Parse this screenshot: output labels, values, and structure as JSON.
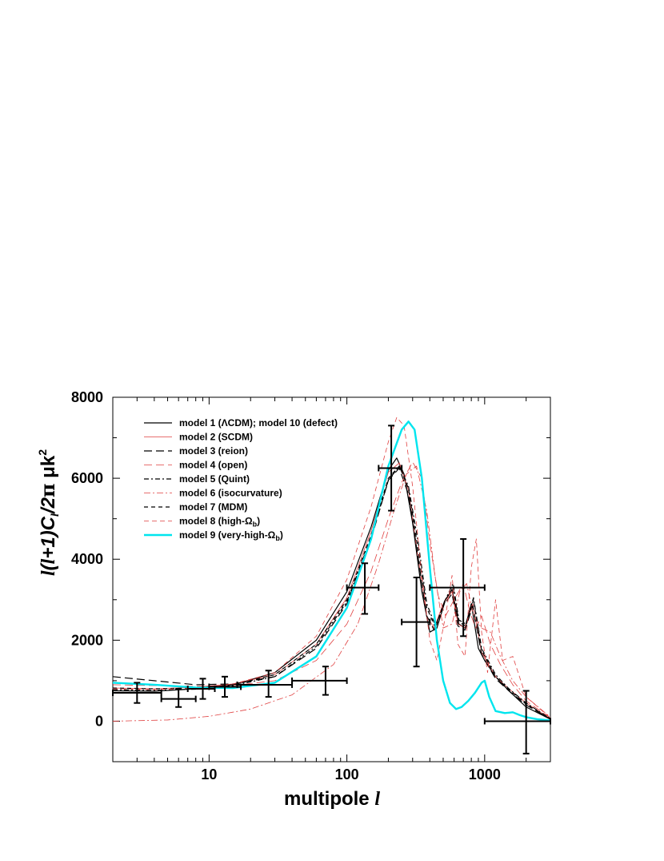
{
  "chart_data": {
    "type": "line",
    "xscale": "log",
    "xlim": [
      2,
      3000
    ],
    "ylim": [
      -1000,
      8000
    ],
    "xlabel": "multipole ",
    "xlabel_var": "l",
    "ylabel": {
      "l1": "l",
      "p1": "(",
      "l2": "l",
      "p2": "+1)",
      "C": "C",
      "sub": "l",
      "p3": "/2",
      "pi": "π",
      "units": " μk",
      "sup": "2"
    },
    "x_ticks": [
      {
        "value": 10,
        "label": "10"
      },
      {
        "value": 100,
        "label": "100"
      },
      {
        "value": 1000,
        "label": "1000"
      }
    ],
    "y_ticks": [
      {
        "value": 0,
        "label": "0"
      },
      {
        "value": 2000,
        "label": "2000"
      },
      {
        "value": 4000,
        "label": "4000"
      },
      {
        "value": 6000,
        "label": "6000"
      },
      {
        "value": 8000,
        "label": "8000"
      }
    ],
    "grid": false,
    "legend_placement": "top-left",
    "series": [
      {
        "name": "model 1 (ΛCDM); model 10 (defect)",
        "color": "#000000",
        "dash": "",
        "width": 1.2,
        "x": [
          2,
          4,
          8,
          15,
          30,
          60,
          100,
          150,
          200,
          230,
          260,
          300,
          350,
          400,
          450,
          520,
          580,
          650,
          720,
          800,
          900,
          1000,
          1200,
          1500,
          2000,
          3000
        ],
        "y": [
          750,
          740,
          800,
          900,
          1200,
          2000,
          3200,
          4800,
          6200,
          6500,
          6100,
          4900,
          3200,
          2200,
          2300,
          3000,
          3250,
          2400,
          2300,
          2900,
          1800,
          1500,
          1100,
          750,
          350,
          50
        ]
      },
      {
        "name": "model 2 (SCDM)",
        "color": "#e04040",
        "dash": "",
        "width": 0.8,
        "x": [
          2,
          4,
          8,
          15,
          30,
          60,
          100,
          150,
          200,
          240,
          280,
          330,
          380,
          430,
          500,
          580,
          640,
          720,
          820,
          950,
          1200,
          1500,
          2000,
          3000
        ],
        "y": [
          820,
          800,
          840,
          920,
          1150,
          1900,
          3050,
          4700,
          6150,
          6380,
          5700,
          4000,
          2600,
          2300,
          2900,
          3200,
          2400,
          2300,
          2900,
          1700,
          1100,
          800,
          450,
          60
        ]
      },
      {
        "name": "model 3 (reion)",
        "color": "#000000",
        "dash": "10,5",
        "width": 1.2,
        "x": [
          2,
          4,
          8,
          15,
          30,
          60,
          100,
          150,
          200,
          240,
          280,
          330,
          380,
          430,
          500,
          580,
          640,
          720,
          820,
          950,
          1200,
          1500,
          2000,
          3000
        ],
        "y": [
          1100,
          1000,
          900,
          920,
          1100,
          1800,
          2900,
          4500,
          5950,
          6250,
          5600,
          4000,
          2600,
          2250,
          2850,
          3150,
          2350,
          2250,
          2850,
          1650,
          1050,
          750,
          400,
          50
        ]
      },
      {
        "name": "model 4 (open)",
        "color": "#e04040",
        "dash": "10,5",
        "width": 0.8,
        "x": [
          2,
          4,
          8,
          15,
          30,
          60,
          100,
          150,
          200,
          250,
          300,
          350,
          400,
          460,
          520,
          600,
          700,
          780,
          860,
          950,
          1100,
          1300,
          1600,
          2000,
          3000
        ],
        "y": [
          900,
          880,
          860,
          880,
          1000,
          1500,
          2400,
          3700,
          5000,
          5900,
          6400,
          6000,
          4400,
          3100,
          2600,
          3000,
          3400,
          2700,
          2300,
          2600,
          1900,
          1400,
          900,
          500,
          80
        ]
      },
      {
        "name": "model 5 (Quint)",
        "color": "#000000",
        "dash": "6,3,2,3",
        "width": 1.2,
        "x": [
          2,
          4,
          8,
          15,
          30,
          60,
          100,
          150,
          200,
          240,
          280,
          330,
          380,
          440,
          510,
          590,
          650,
          730,
          830,
          950,
          1200,
          1500,
          2000,
          3000
        ],
        "y": [
          780,
          760,
          790,
          880,
          1100,
          1850,
          2950,
          4550,
          5950,
          6300,
          5800,
          4400,
          2900,
          2350,
          2950,
          3400,
          2500,
          2400,
          3050,
          1800,
          1150,
          800,
          450,
          60
        ]
      },
      {
        "name": "model 6 (isocurvature)",
        "color": "#e04040",
        "dash": "8,3,2,3",
        "width": 0.8,
        "x": [
          2,
          5,
          10,
          20,
          40,
          80,
          120,
          170,
          220,
          270,
          320,
          380,
          440,
          500,
          580,
          660,
          740,
          830,
          950,
          1100,
          1300,
          1600,
          2000,
          3000
        ],
        "y": [
          0,
          30,
          120,
          300,
          650,
          1400,
          2400,
          3900,
          5200,
          6100,
          6300,
          5200,
          3500,
          2300,
          2400,
          3200,
          3400,
          2600,
          2300,
          2200,
          1600,
          1000,
          600,
          100
        ]
      },
      {
        "name": "model 7 (MDM)",
        "color": "#000000",
        "dash": "5,4",
        "width": 1.2,
        "x": [
          2,
          4,
          8,
          15,
          30,
          60,
          100,
          150,
          200,
          240,
          280,
          330,
          380,
          440,
          510,
          590,
          650,
          730,
          830,
          950,
          1200,
          1500,
          2000,
          3000
        ],
        "y": [
          820,
          800,
          820,
          900,
          1150,
          1900,
          3000,
          4600,
          6000,
          6300,
          5750,
          4200,
          2800,
          2300,
          2950,
          3300,
          2450,
          2350,
          3000,
          1750,
          1100,
          780,
          420,
          60
        ]
      },
      {
        "name": "model 8 (high-Ω",
        "name_sub": "b",
        "name_end": ")",
        "color": "#e04040",
        "dash": "6,4",
        "width": 0.8,
        "x": [
          2,
          4,
          8,
          15,
          30,
          60,
          100,
          150,
          200,
          230,
          260,
          300,
          350,
          400,
          450,
          520,
          580,
          640,
          720,
          800,
          870,
          950,
          1050,
          1200,
          1350,
          1600,
          2000,
          3000
        ],
        "y": [
          800,
          780,
          820,
          920,
          1200,
          2100,
          3500,
          5300,
          6900,
          7500,
          7300,
          5800,
          3600,
          2000,
          1500,
          2600,
          3600,
          1900,
          1600,
          3800,
          4500,
          2200,
          1200,
          3000,
          1500,
          1600,
          600,
          80
        ]
      },
      {
        "name": "model 9 (very-high-Ω",
        "name_sub": "b",
        "name_end": ")",
        "color": "#00e5ee",
        "dash": "",
        "width": 2.4,
        "x": [
          2,
          4,
          8,
          15,
          30,
          60,
          100,
          150,
          200,
          250,
          280,
          310,
          350,
          400,
          450,
          500,
          560,
          620,
          680,
          760,
          850,
          950,
          1000,
          1080,
          1200,
          1400,
          1600,
          1800,
          2000,
          2400,
          3000
        ],
        "y": [
          950,
          900,
          830,
          820,
          950,
          1600,
          2800,
          4500,
          6300,
          7200,
          7400,
          7200,
          6000,
          3800,
          2000,
          1000,
          450,
          300,
          350,
          500,
          700,
          950,
          1000,
          600,
          250,
          200,
          220,
          150,
          100,
          50,
          20
        ]
      }
    ],
    "data_points": [
      {
        "x": 3,
        "y": 700,
        "xlo": 2,
        "xhi": 4.5,
        "ylo": 450,
        "yhi": 950
      },
      {
        "x": 6,
        "y": 550,
        "xlo": 4.5,
        "xhi": 8,
        "ylo": 350,
        "yhi": 800
      },
      {
        "x": 9,
        "y": 800,
        "xlo": 7,
        "xhi": 11,
        "ylo": 550,
        "yhi": 1050
      },
      {
        "x": 13,
        "y": 850,
        "xlo": 10,
        "xhi": 17,
        "ylo": 600,
        "yhi": 1100
      },
      {
        "x": 27,
        "y": 900,
        "xlo": 16,
        "xhi": 40,
        "ylo": 600,
        "yhi": 1250
      },
      {
        "x": 70,
        "y": 1000,
        "xlo": 40,
        "xhi": 100,
        "ylo": 650,
        "yhi": 1350
      },
      {
        "x": 135,
        "y": 3300,
        "xlo": 100,
        "xhi": 170,
        "ylo": 2650,
        "yhi": 3900
      },
      {
        "x": 210,
        "y": 6250,
        "xlo": 170,
        "xhi": 250,
        "ylo": 5200,
        "yhi": 7300
      },
      {
        "x": 320,
        "y": 2450,
        "xlo": 250,
        "xhi": 400,
        "ylo": 1350,
        "yhi": 3550
      },
      {
        "x": 700,
        "y": 3300,
        "xlo": 400,
        "xhi": 1000,
        "ylo": 2100,
        "yhi": 4500
      },
      {
        "x": 2000,
        "y": 0,
        "xlo": 1000,
        "xhi": 3000,
        "ylo": -800,
        "yhi": 750
      }
    ]
  }
}
